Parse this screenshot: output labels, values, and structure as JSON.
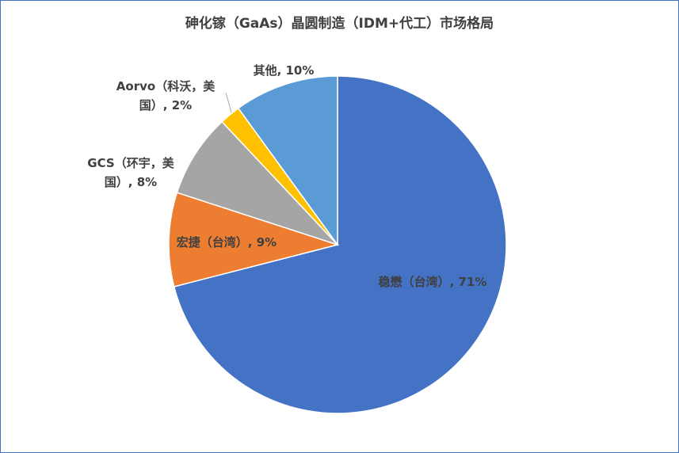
{
  "chart_data": {
    "type": "pie",
    "title": "砷化镓（GaAs）晶圆制造（IDM+代工）市场格局",
    "labels": [
      "稳懋（台湾）, 71%",
      "宏捷（台湾）, 9%",
      "GCS（环宇，美国）, 8%",
      "Aorvo（科沃，美国）, 2%",
      "其他, 10%"
    ],
    "values": [
      71,
      9,
      8,
      2,
      10
    ],
    "colors": [
      "#4472c4",
      "#ed7d31",
      "#a5a5a5",
      "#ffc000",
      "#5b9bd5"
    ]
  }
}
